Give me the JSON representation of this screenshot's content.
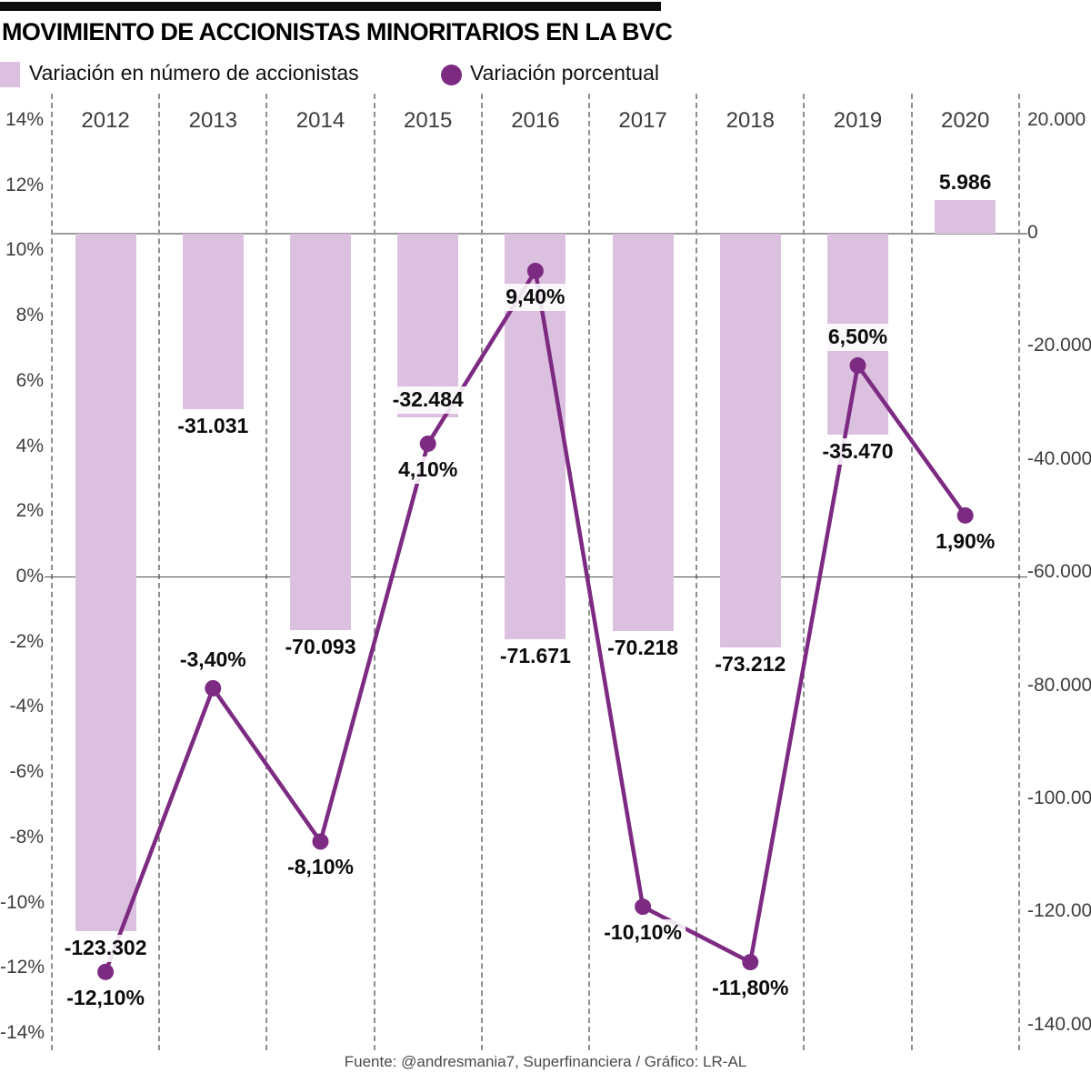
{
  "title": "MOVIMIENTO DE ACCIONISTAS MINORITARIOS EN LA BVC",
  "legend": {
    "bars_label": "Variación en número de accionistas",
    "line_label": "Variación porcentual"
  },
  "footer": "Fuente: @andresmania7, Superfinanciera / Gráfico: LR-AL",
  "colors": {
    "bar_fill": "#dcc0e0",
    "line_purple": "#7d2b82",
    "divider_gray": "#8f8f8f",
    "zero_line_top": "#9a9a9a",
    "zero_line_bottom": "#4d4d4d",
    "axis_text": "#3d3d3d",
    "value_text": "#0c0c0c",
    "accent_black": "#0d0d0d"
  },
  "chart_data": {
    "type": "bar",
    "subtype": "combo bar+line, dual axis",
    "categories": [
      "2012",
      "2013",
      "2014",
      "2015",
      "2016",
      "2017",
      "2018",
      "2019",
      "2020"
    ],
    "series": [
      {
        "name": "Variación en número de accionistas",
        "type": "bar",
        "axis": "right",
        "values": [
          -123302,
          -31031,
          -70093,
          -32484,
          -71671,
          -70218,
          -73212,
          -35470,
          5986
        ],
        "labels": [
          "-123.302",
          "-31.031",
          "-70.093",
          "-32.484",
          "-71.671",
          "-70.218",
          "-73.212",
          "-35.470",
          "5.986"
        ]
      },
      {
        "name": "Variación porcentual",
        "type": "line",
        "axis": "left",
        "values": [
          -12.1,
          -3.4,
          -8.1,
          4.1,
          9.4,
          -10.1,
          -11.8,
          6.5,
          1.9
        ],
        "labels": [
          "-12,10%",
          "-3,40%",
          "-8,10%",
          "4,10%",
          "9,40%",
          "-10,10%",
          "-11,80%",
          "6,50%",
          "1,90%"
        ]
      }
    ],
    "left_axis": {
      "unit": "%",
      "min": -14,
      "max": 14,
      "grid": "solid line at 0%",
      "ticks": [
        {
          "v": 14,
          "label": "14%"
        },
        {
          "v": 12,
          "label": "12%"
        },
        {
          "v": 10,
          "label": "10%"
        },
        {
          "v": 8,
          "label": "8%"
        },
        {
          "v": 6,
          "label": "6%"
        },
        {
          "v": 4,
          "label": "4%"
        },
        {
          "v": 2,
          "label": "2%"
        },
        {
          "v": 0,
          "label": "0%"
        },
        {
          "v": -2,
          "label": "-2%"
        },
        {
          "v": -4,
          "label": "-4%"
        },
        {
          "v": -6,
          "label": "-6%"
        },
        {
          "v": -8,
          "label": "-8%"
        },
        {
          "v": -10,
          "label": "-10%"
        },
        {
          "v": -12,
          "label": "-12%"
        },
        {
          "v": -14,
          "label": "-14%"
        }
      ]
    },
    "right_axis": {
      "unit": "accionistas",
      "min": -140000,
      "max": 20000,
      "grid": "solid line at 0",
      "ticks": [
        {
          "v": 20000,
          "label": "20.000"
        },
        {
          "v": 0,
          "label": "0"
        },
        {
          "v": -20000,
          "label": "-20.000"
        },
        {
          "v": -40000,
          "label": "-40.000"
        },
        {
          "v": -60000,
          "label": "-60.000"
        },
        {
          "v": -80000,
          "label": "-80.000"
        },
        {
          "v": -100000,
          "label": "-100.000"
        },
        {
          "v": -120000,
          "label": "-120.000"
        },
        {
          "v": -140000,
          "label": "-140.000"
        }
      ]
    },
    "label_placement": {
      "bar": [
        "below",
        "below",
        "below",
        "overlap",
        "below",
        "below",
        "below",
        "below",
        "above"
      ],
      "line": [
        "below",
        "above",
        "below",
        "below",
        "below",
        "below",
        "below",
        "above",
        "below"
      ]
    },
    "layout_hints": {
      "column_dividers": "dashed",
      "legend_position": "top-left",
      "bars_hang_from_right_axis_zero": true
    }
  }
}
